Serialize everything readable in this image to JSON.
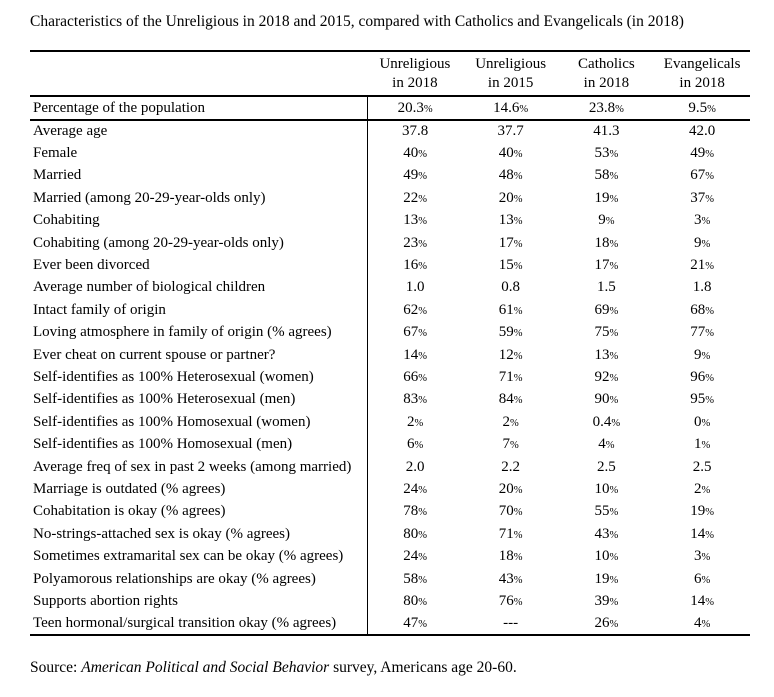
{
  "title": "Characteristics of the Unreligious in 2018 and 2015, compared with Catholics and Evangelicals (in 2018)",
  "table": {
    "header": [
      {
        "line1": "Unreligious",
        "line2": "in 2018"
      },
      {
        "line1": "Unreligious",
        "line2": "in 2015"
      },
      {
        "line1": "Catholics",
        "line2": "in 2018"
      },
      {
        "line1": "Evangelicals",
        "line2": "in 2018"
      }
    ],
    "percentage_row": {
      "label": "Percentage of the population",
      "values": [
        "20.3%",
        "14.6%",
        "23.8%",
        "9.5%"
      ]
    },
    "rows": [
      {
        "label": "Average age",
        "values": [
          "37.8",
          "37.7",
          "41.3",
          "42.0"
        ]
      },
      {
        "label": "Female",
        "values": [
          "40%",
          "40%",
          "53%",
          "49%"
        ]
      },
      {
        "label": "Married",
        "values": [
          "49%",
          "48%",
          "58%",
          "67%"
        ]
      },
      {
        "label": "Married (among 20-29-year-olds only)",
        "values": [
          "22%",
          "20%",
          "19%",
          "37%"
        ]
      },
      {
        "label": "Cohabiting",
        "values": [
          "13%",
          "13%",
          "9%",
          "3%"
        ]
      },
      {
        "label": "Cohabiting (among 20-29-year-olds only)",
        "values": [
          "23%",
          "17%",
          "18%",
          "9%"
        ]
      },
      {
        "label": "Ever been divorced",
        "values": [
          "16%",
          "15%",
          "17%",
          "21%"
        ]
      },
      {
        "label": "Average number of biological children",
        "values": [
          "1.0",
          "0.8",
          "1.5",
          "1.8"
        ]
      },
      {
        "label": "Intact family of origin",
        "values": [
          "62%",
          "61%",
          "69%",
          "68%"
        ]
      },
      {
        "label": "Loving atmosphere in family of origin (% agrees)",
        "values": [
          "67%",
          "59%",
          "75%",
          "77%"
        ]
      },
      {
        "label": "Ever cheat on current spouse or partner?",
        "values": [
          "14%",
          "12%",
          "13%",
          "9%"
        ]
      },
      {
        "label": "Self-identifies as 100% Heterosexual (women)",
        "values": [
          "66%",
          "71%",
          "92%",
          "96%"
        ]
      },
      {
        "label": "Self-identifies as 100% Heterosexual (men)",
        "values": [
          "83%",
          "84%",
          "90%",
          "95%"
        ]
      },
      {
        "label": "Self-identifies as 100% Homosexual (women)",
        "values": [
          "2%",
          "2%",
          "0.4%",
          "0%"
        ]
      },
      {
        "label": "Self-identifies as 100% Homosexual (men)",
        "values": [
          "6%",
          "7%",
          "4%",
          "1%"
        ]
      },
      {
        "label": "Average freq of sex in past 2 weeks (among married)",
        "values": [
          "2.0",
          "2.2",
          "2.5",
          "2.5"
        ]
      },
      {
        "label": "Marriage is outdated (% agrees)",
        "values": [
          "24%",
          "20%",
          "10%",
          "2%"
        ]
      },
      {
        "label": "Cohabitation is okay (% agrees)",
        "values": [
          "78%",
          "70%",
          "55%",
          "19%"
        ]
      },
      {
        "label": "No-strings-attached sex is okay (% agrees)",
        "values": [
          "80%",
          "71%",
          "43%",
          "14%"
        ]
      },
      {
        "label": "Sometimes extramarital sex can be okay (% agrees)",
        "values": [
          "24%",
          "18%",
          "10%",
          "3%"
        ]
      },
      {
        "label": "Polyamorous relationships are okay (% agrees)",
        "values": [
          "58%",
          "43%",
          "19%",
          "6%"
        ]
      },
      {
        "label": "Supports abortion rights",
        "values": [
          "80%",
          "76%",
          "39%",
          "14%"
        ]
      },
      {
        "label": "Teen hormonal/surgical transition okay (% agrees)",
        "values": [
          "47%",
          "---",
          "26%",
          "4%"
        ]
      }
    ]
  },
  "source": {
    "prefix": "Source: ",
    "italic_title": "American Political and Social Behavior",
    "suffix": " survey, Americans age 20-60."
  },
  "colors": {
    "text": "#000000",
    "background": "#ffffff",
    "rule": "#000000"
  }
}
